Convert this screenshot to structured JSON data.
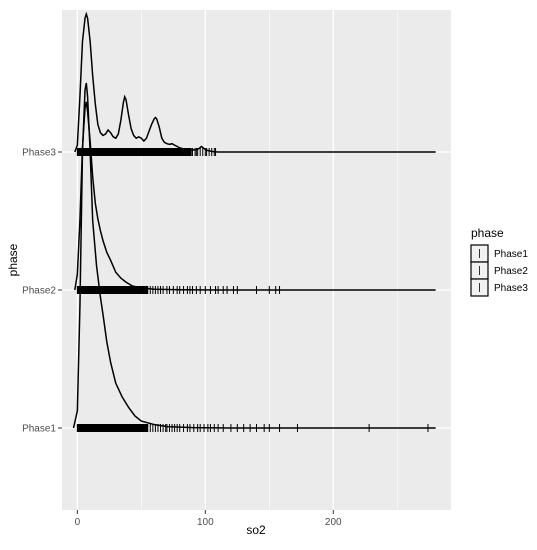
{
  "chart_data": {
    "type": "ridgeline",
    "xlabel": "so2",
    "ylabel": "phase",
    "xlim": [
      -12,
      292
    ],
    "x_ticks": [
      0,
      100,
      200
    ],
    "categories": [
      "Phase1",
      "Phase2",
      "Phase3"
    ],
    "legend": {
      "title": "phase",
      "entries": [
        "Phase1",
        "Phase2",
        "Phase3"
      ],
      "placement": "right"
    },
    "panel_background": "#ebebeb",
    "grid_color": "#ffffff",
    "line_color": "#000000",
    "series": [
      {
        "name": "Phase1",
        "density": [
          [
            -3,
            0
          ],
          [
            0,
            0.05
          ],
          [
            2,
            0.35
          ],
          [
            4,
            0.8
          ],
          [
            6,
            0.98
          ],
          [
            7,
            1.0
          ],
          [
            8,
            0.96
          ],
          [
            10,
            0.8
          ],
          [
            12,
            0.6
          ],
          [
            15,
            0.47
          ],
          [
            18,
            0.38
          ],
          [
            20,
            0.33
          ],
          [
            23,
            0.25
          ],
          [
            26,
            0.19
          ],
          [
            30,
            0.13
          ],
          [
            35,
            0.09
          ],
          [
            40,
            0.06
          ],
          [
            45,
            0.035
          ],
          [
            50,
            0.02
          ],
          [
            60,
            0.01
          ],
          [
            70,
            0.004
          ],
          [
            90,
            0.001
          ],
          [
            120,
            0
          ],
          [
            280,
            0
          ]
        ],
        "rug_dense_max": 55,
        "rug_sparse": [
          57,
          59,
          61,
          63,
          65,
          67,
          69,
          70,
          72,
          74,
          76,
          78,
          80,
          83,
          86,
          88,
          91,
          94,
          96,
          99,
          102,
          104,
          107,
          110,
          114,
          120,
          125,
          130,
          135,
          140,
          146,
          150,
          158,
          172,
          228,
          274
        ]
      },
      {
        "name": "Phase2",
        "density": [
          [
            -2,
            0
          ],
          [
            0,
            0.08
          ],
          [
            2,
            0.35
          ],
          [
            4,
            0.72
          ],
          [
            6,
            0.92
          ],
          [
            7,
            0.95
          ],
          [
            8,
            0.9
          ],
          [
            10,
            0.75
          ],
          [
            12,
            0.57
          ],
          [
            14,
            0.44
          ],
          [
            16,
            0.36
          ],
          [
            18,
            0.3
          ],
          [
            20,
            0.25
          ],
          [
            23,
            0.19
          ],
          [
            26,
            0.15
          ],
          [
            30,
            0.09
          ],
          [
            34,
            0.06
          ],
          [
            38,
            0.04
          ],
          [
            43,
            0.02
          ],
          [
            50,
            0.01
          ],
          [
            60,
            0.004
          ],
          [
            80,
            0.001
          ],
          [
            110,
            0
          ],
          [
            280,
            0
          ]
        ],
        "rug_dense_max": 55,
        "rug_sparse": [
          57,
          59,
          61,
          63,
          65,
          67,
          70,
          72,
          75,
          78,
          80,
          83,
          86,
          88,
          90,
          93,
          96,
          100,
          104,
          108,
          110,
          114,
          117,
          122,
          125,
          140,
          150,
          155,
          158
        ]
      },
      {
        "name": "Phase3",
        "density": [
          [
            -2,
            0
          ],
          [
            0,
            0.05
          ],
          [
            2,
            0.4
          ],
          [
            4,
            0.8
          ],
          [
            6,
            0.97
          ],
          [
            7,
            1.0
          ],
          [
            8,
            0.97
          ],
          [
            10,
            0.8
          ],
          [
            12,
            0.55
          ],
          [
            14,
            0.35
          ],
          [
            16,
            0.2
          ],
          [
            18,
            0.14
          ],
          [
            20,
            0.12
          ],
          [
            22,
            0.13
          ],
          [
            24,
            0.16
          ],
          [
            26,
            0.14
          ],
          [
            28,
            0.11
          ],
          [
            30,
            0.1
          ],
          [
            32,
            0.13
          ],
          [
            34,
            0.23
          ],
          [
            36,
            0.36
          ],
          [
            37,
            0.4
          ],
          [
            38,
            0.38
          ],
          [
            40,
            0.27
          ],
          [
            42,
            0.17
          ],
          [
            44,
            0.12
          ],
          [
            46,
            0.1
          ],
          [
            48,
            0.11
          ],
          [
            50,
            0.1
          ],
          [
            52,
            0.08
          ],
          [
            54,
            0.1
          ],
          [
            56,
            0.15
          ],
          [
            58,
            0.2
          ],
          [
            60,
            0.24
          ],
          [
            61,
            0.25
          ],
          [
            62,
            0.24
          ],
          [
            64,
            0.18
          ],
          [
            66,
            0.1
          ],
          [
            68,
            0.07
          ],
          [
            70,
            0.06
          ],
          [
            72,
            0.055
          ],
          [
            74,
            0.06
          ],
          [
            76,
            0.05
          ],
          [
            80,
            0.03
          ],
          [
            84,
            0.02
          ],
          [
            88,
            0.015
          ],
          [
            92,
            0.015
          ],
          [
            95,
            0.025
          ],
          [
            97,
            0.04
          ],
          [
            99,
            0.025
          ],
          [
            102,
            0.01
          ],
          [
            106,
            0.003
          ],
          [
            110,
            0
          ],
          [
            280,
            0
          ]
        ],
        "rug_dense_max": 89,
        "rug_sparse": [
          90,
          92,
          93,
          94,
          96,
          98,
          100,
          101,
          103,
          105,
          107,
          108
        ]
      }
    ]
  }
}
